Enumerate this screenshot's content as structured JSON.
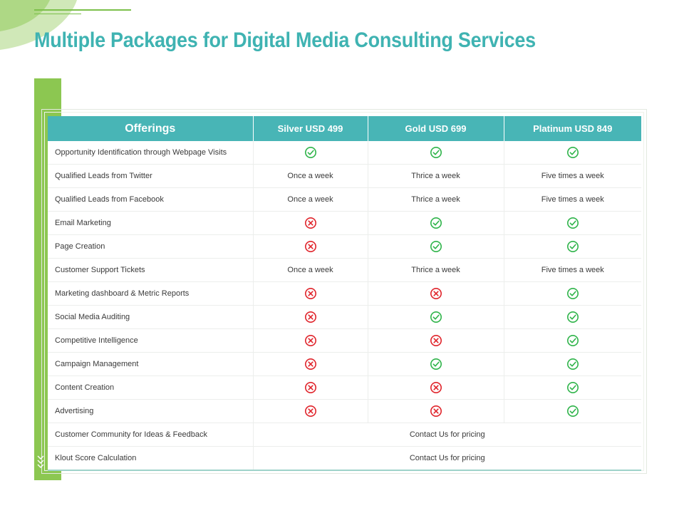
{
  "title": "Multiple Packages for Digital Media Consulting Services",
  "colors": {
    "accent_teal": "#48b5b6",
    "accent_green": "#8cc751",
    "check": "#2fb44a",
    "cross": "#e0242b"
  },
  "table": {
    "headers": [
      "Offerings",
      "Silver USD 499",
      "Gold USD 699",
      "Platinum USD 849"
    ],
    "rows": [
      {
        "label": "Opportunity Identification through Webpage Visits",
        "cells": [
          "check",
          "check",
          "check"
        ]
      },
      {
        "label": "Qualified Leads from Twitter",
        "cells": [
          "Once a week",
          "Thrice a week",
          "Five times a week"
        ]
      },
      {
        "label": "Qualified Leads from Facebook",
        "cells": [
          "Once a week",
          "Thrice a week",
          "Five times a week"
        ]
      },
      {
        "label": "Email Marketing",
        "cells": [
          "cross",
          "check",
          "check"
        ]
      },
      {
        "label": "Page Creation",
        "cells": [
          "cross",
          "check",
          "check"
        ]
      },
      {
        "label": "Customer Support Tickets",
        "cells": [
          "Once a week",
          "Thrice a week",
          "Five times a week"
        ]
      },
      {
        "label": "Marketing dashboard & Metric Reports",
        "cells": [
          "cross",
          "cross",
          "check"
        ]
      },
      {
        "label": "Social Media Auditing",
        "cells": [
          "cross",
          "check",
          "check"
        ]
      },
      {
        "label": "Competitive Intelligence",
        "cells": [
          "cross",
          "cross",
          "check"
        ]
      },
      {
        "label": "Campaign Management",
        "cells": [
          "cross",
          "check",
          "check"
        ]
      },
      {
        "label": "Content Creation",
        "cells": [
          "cross",
          "cross",
          "check"
        ]
      },
      {
        "label": "Advertising",
        "cells": [
          "cross",
          "cross",
          "check"
        ]
      },
      {
        "label": "Customer Community for Ideas & Feedback",
        "span": "Contact Us for pricing"
      },
      {
        "label": "Klout Score Calculation",
        "span": "Contact Us for pricing"
      }
    ]
  }
}
